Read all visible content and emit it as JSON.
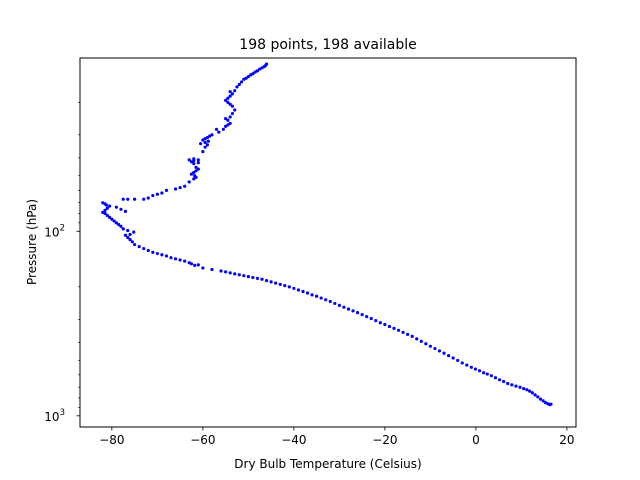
{
  "chart_data": {
    "type": "scatter",
    "title": "198 points, 198 available",
    "xlabel": "Dry Bulb Temperature (Celsius)",
    "ylabel": "Pressure (hPa)",
    "xlim": [
      -87,
      22
    ],
    "ylim": [
      1150,
      11.5
    ],
    "yscale": "log",
    "y_inverted": true,
    "grid": false,
    "marker_color": "#0000ff",
    "x_ticks": [
      {
        "value": -80,
        "label": "−80"
      },
      {
        "value": -60,
        "label": "−60"
      },
      {
        "value": -40,
        "label": "−40"
      },
      {
        "value": -20,
        "label": "−20"
      },
      {
        "value": 0,
        "label": "0"
      },
      {
        "value": 20,
        "label": "20"
      }
    ],
    "y_ticks": [
      {
        "value": 100,
        "base": "10",
        "exp": "2"
      },
      {
        "value": 1000,
        "base": "10",
        "exp": "3"
      }
    ],
    "series": [
      {
        "points": [
          [
            16.5,
            865
          ],
          [
            16.2,
            870
          ],
          [
            15.8,
            860
          ],
          [
            15.3,
            848
          ],
          [
            14.8,
            830
          ],
          [
            14.2,
            812
          ],
          [
            13.6,
            790
          ],
          [
            13.0,
            770
          ],
          [
            12.4,
            750
          ],
          [
            11.8,
            735
          ],
          [
            11.2,
            722
          ],
          [
            10.5,
            712
          ],
          [
            9.7,
            700
          ],
          [
            8.8,
            690
          ],
          [
            7.9,
            680
          ],
          [
            7.0,
            668
          ],
          [
            6.1,
            652
          ],
          [
            5.2,
            638
          ],
          [
            4.3,
            622
          ],
          [
            3.4,
            606
          ],
          [
            2.5,
            594
          ],
          [
            1.7,
            584
          ],
          [
            0.8,
            570
          ],
          [
            -0.1,
            558
          ],
          [
            -1.0,
            546
          ],
          [
            -2.0,
            531
          ],
          [
            -3.0,
            517
          ],
          [
            -4.0,
            501
          ],
          [
            -5.0,
            486
          ],
          [
            -6.0,
            472
          ],
          [
            -7.0,
            458
          ],
          [
            -8.0,
            445
          ],
          [
            -9.0,
            432
          ],
          [
            -10.0,
            420
          ],
          [
            -11.0,
            407
          ],
          [
            -12.0,
            395
          ],
          [
            -13.0,
            383
          ],
          [
            -14.0,
            371
          ],
          [
            -15.0,
            362
          ],
          [
            -16.0,
            353
          ],
          [
            -17.0,
            344
          ],
          [
            -18.0,
            336
          ],
          [
            -19.0,
            328
          ],
          [
            -20.0,
            320
          ],
          [
            -21.0,
            313
          ],
          [
            -22.0,
            305
          ],
          [
            -23.0,
            297
          ],
          [
            -24.0,
            290
          ],
          [
            -25.0,
            283
          ],
          [
            -26.0,
            276
          ],
          [
            -27.0,
            270
          ],
          [
            -28.0,
            264
          ],
          [
            -29.0,
            258
          ],
          [
            -30.0,
            252
          ],
          [
            -31.0,
            246
          ],
          [
            -32.0,
            240
          ],
          [
            -33.0,
            235
          ],
          [
            -34.0,
            230
          ],
          [
            -35.0,
            225
          ],
          [
            -36.0,
            221
          ],
          [
            -37.0,
            216
          ],
          [
            -38.0,
            212
          ],
          [
            -39.0,
            208
          ],
          [
            -40.0,
            204
          ],
          [
            -41.0,
            200
          ],
          [
            -42.0,
            197
          ],
          [
            -43.0,
            194
          ],
          [
            -44.0,
            191
          ],
          [
            -45.0,
            188
          ],
          [
            -46.0,
            185
          ],
          [
            -47.0,
            182
          ],
          [
            -48.0,
            180
          ],
          [
            -49.0,
            178
          ],
          [
            -50.0,
            176
          ],
          [
            -51.0,
            174
          ],
          [
            -52.0,
            172
          ],
          [
            -53.0,
            170
          ],
          [
            -54.0,
            168
          ],
          [
            -55.0,
            166
          ],
          [
            -56.0,
            164
          ],
          [
            -58.0,
            161
          ],
          [
            -60.0,
            158
          ],
          [
            -61.0,
            152
          ],
          [
            -61.8,
            153
          ],
          [
            -62.5,
            150
          ],
          [
            -63.0,
            148
          ],
          [
            -64.0,
            145
          ],
          [
            -65.0,
            143
          ],
          [
            -66.0,
            141
          ],
          [
            -67.0,
            139
          ],
          [
            -68.0,
            136
          ],
          [
            -69.0,
            134
          ],
          [
            -70.0,
            132
          ],
          [
            -71.0,
            130
          ],
          [
            -72.0,
            127
          ],
          [
            -73.0,
            124
          ],
          [
            -74.0,
            121
          ],
          [
            -75.0,
            118
          ],
          [
            -75.5,
            114
          ],
          [
            -76.0,
            111
          ],
          [
            -76.5,
            108
          ],
          [
            -77.0,
            105
          ],
          [
            -76.0,
            104
          ],
          [
            -75.2,
            101
          ],
          [
            -76.5,
            99
          ],
          [
            -77.5,
            97
          ],
          [
            -78.0,
            94
          ],
          [
            -78.5,
            92
          ],
          [
            -79.0,
            90
          ],
          [
            -79.5,
            88
          ],
          [
            -80.0,
            86
          ],
          [
            -80.5,
            84
          ],
          [
            -81.0,
            82
          ],
          [
            -81.5,
            80
          ],
          [
            -82.0,
            79
          ],
          [
            -81.5,
            77
          ],
          [
            -81.0,
            75
          ],
          [
            -80.5,
            73
          ],
          [
            -81.5,
            71
          ],
          [
            -82.0,
            70
          ],
          [
            -81.2,
            72
          ],
          [
            -79.0,
            74
          ],
          [
            -78.0,
            76
          ],
          [
            -77.0,
            78
          ],
          [
            -77.5,
            67
          ],
          [
            -76.5,
            67
          ],
          [
            -75.0,
            67
          ],
          [
            -73.0,
            67
          ],
          [
            -72.0,
            66
          ],
          [
            -71.0,
            64
          ],
          [
            -70.0,
            63
          ],
          [
            -69.0,
            62
          ],
          [
            -68.0,
            60
          ],
          [
            -66.0,
            59
          ],
          [
            -65.0,
            58
          ],
          [
            -64.0,
            57
          ],
          [
            -63.0,
            54
          ],
          [
            -62.0,
            52
          ],
          [
            -61.5,
            51
          ],
          [
            -61.8,
            50
          ],
          [
            -62.5,
            49
          ],
          [
            -62.0,
            48
          ],
          [
            -61.5,
            47
          ],
          [
            -61.0,
            46
          ],
          [
            -61.5,
            45
          ],
          [
            -62.0,
            43
          ],
          [
            -62.5,
            42
          ],
          [
            -63.0,
            41
          ],
          [
            -62.0,
            41.5
          ],
          [
            -61.0,
            41
          ],
          [
            -60.0,
            37
          ],
          [
            -59.5,
            35
          ],
          [
            -59.0,
            34
          ],
          [
            -59.5,
            33
          ],
          [
            -60.0,
            32
          ],
          [
            -59.5,
            31.5
          ],
          [
            -59.0,
            31
          ],
          [
            -58.5,
            30.5
          ],
          [
            -58.0,
            30
          ],
          [
            -57.0,
            28
          ],
          [
            -55.0,
            27
          ],
          [
            -54.5,
            26.5
          ],
          [
            -54.0,
            26
          ],
          [
            -54.5,
            25
          ],
          [
            -55.0,
            24.5
          ],
          [
            -54.0,
            24
          ],
          [
            -53.5,
            23
          ],
          [
            -53.0,
            22
          ],
          [
            -53.5,
            21
          ],
          [
            -54.0,
            20.5
          ],
          [
            -54.5,
            20
          ],
          [
            -55.0,
            19.5
          ],
          [
            -54.5,
            19
          ],
          [
            -54.0,
            18.5
          ],
          [
            -53.5,
            18
          ],
          [
            -54.0,
            17.5
          ],
          [
            -53.0,
            17.3
          ],
          [
            -52.0,
            16
          ],
          [
            -51.0,
            15
          ],
          [
            -50.0,
            14.5
          ],
          [
            -49.5,
            14.2
          ],
          [
            -49.0,
            14
          ],
          [
            -48.5,
            13.7
          ],
          [
            -48.0,
            13.5
          ],
          [
            -47.5,
            13.2
          ],
          [
            -47.0,
            13
          ],
          [
            -46.5,
            12.8
          ],
          [
            -46.2,
            12.6
          ],
          [
            -46.0,
            12.4
          ],
          [
            -50.5,
            14.8
          ],
          [
            -51.5,
            15.5
          ],
          [
            -52.5,
            16.5
          ],
          [
            -55.5,
            28
          ],
          [
            -56.5,
            29
          ],
          [
            -58.8,
            32.5
          ],
          [
            -60.5,
            33.5
          ],
          [
            -61.0,
            42.5
          ],
          [
            -62.0,
            40.5
          ]
        ]
      }
    ]
  }
}
